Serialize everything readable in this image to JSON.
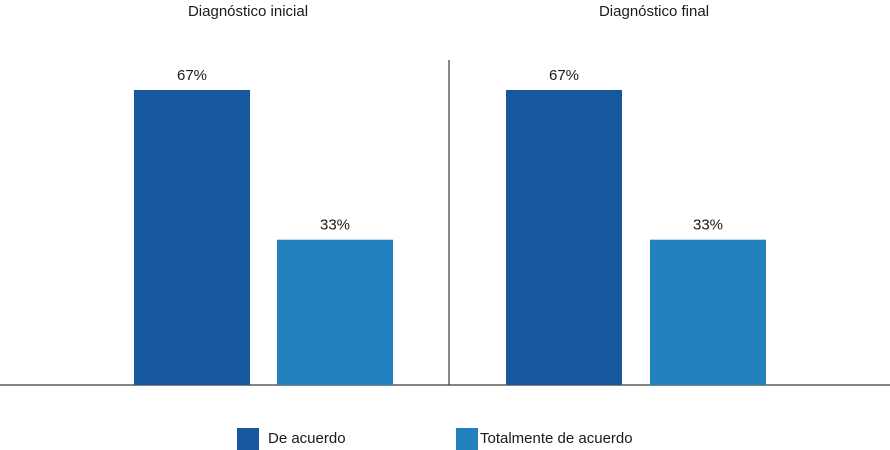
{
  "chart_data": {
    "type": "bar",
    "panels": [
      {
        "title": "Diagnóstico inicial",
        "values": [
          67,
          33
        ]
      },
      {
        "title": "Diagnóstico final",
        "values": [
          67,
          33
        ]
      }
    ],
    "series": [
      {
        "name": "De acuerdo",
        "color": "#1757a0"
      },
      {
        "name": "Totalmente de acuerdo",
        "color": "#2380be"
      }
    ],
    "value_suffix": "%",
    "ylim": [
      0,
      100
    ],
    "grid": false,
    "legend_position": "bottom"
  }
}
